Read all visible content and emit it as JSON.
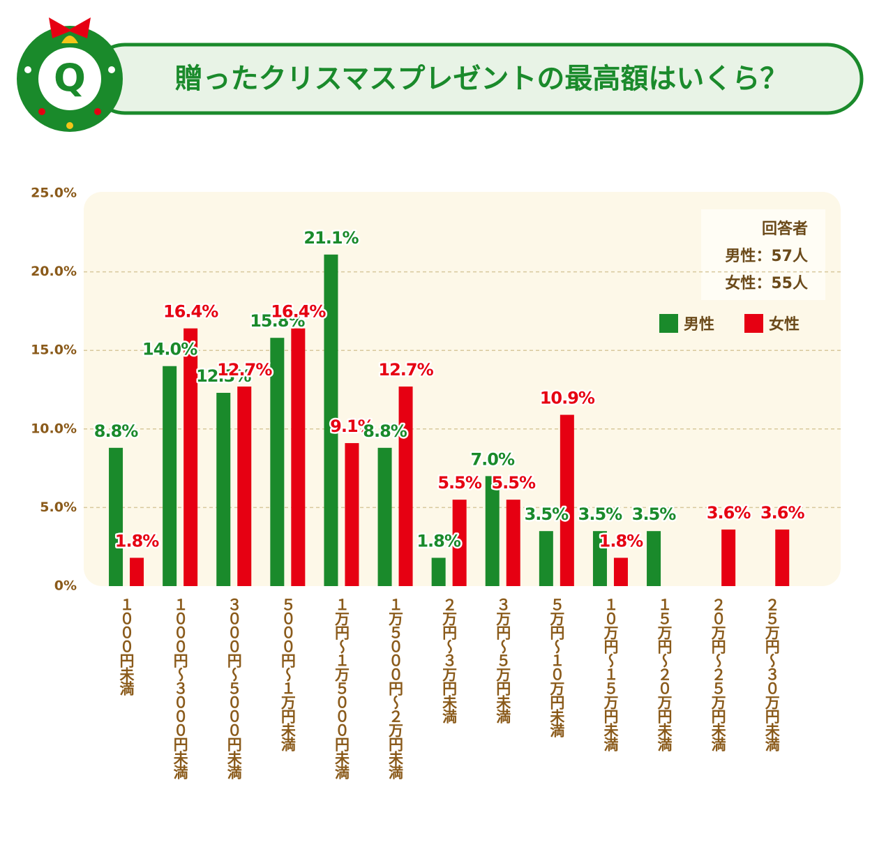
{
  "badge": "Q",
  "chart_data": {
    "type": "bar",
    "title": "贈ったクリスマスプレゼントの最高額はいくら？",
    "categories": [
      "１０００円未満",
      "１０００円～３０００円未満",
      "３０００円～５０００円未満",
      "５０００円～１万円未満",
      "１万円～１万５０００円未満",
      "１万５０００円～２万円未満",
      "２万円～３万円未満",
      "３万円～５万円未満",
      "５万円～１０万円未満",
      "１０万円～１５万円未満",
      "１５万円～２０万円未満",
      "２０万円～２５万円未満",
      "２５万円～３０万円未満"
    ],
    "series": [
      {
        "name": "男性",
        "color": "#1a8a2b",
        "values": [
          8.8,
          14.0,
          12.3,
          15.8,
          21.1,
          8.8,
          1.8,
          7.0,
          3.5,
          3.5,
          3.5,
          null,
          null
        ],
        "value_labels": [
          "8.8%",
          "14.0%",
          "12.3%",
          "15.8%",
          "21.1%",
          "8.8%",
          "1.8%",
          "7.0%",
          "3.5%",
          "3.5%",
          "3.5%",
          null,
          null
        ]
      },
      {
        "name": "女性",
        "color": "#e60012",
        "values": [
          1.8,
          16.4,
          12.7,
          16.4,
          9.1,
          12.7,
          5.5,
          5.5,
          10.9,
          1.8,
          null,
          3.6,
          3.6
        ],
        "value_labels": [
          "1.8%",
          "16.4%",
          "12.7%",
          "16.4%",
          "9.1%",
          "12.7%",
          "5.5%",
          "5.5%",
          "10.9%",
          "1.8%",
          null,
          "3.6%",
          "3.6%"
        ]
      }
    ],
    "ylim": [
      0,
      25
    ],
    "yticks": [
      {
        "value": 0,
        "label": "0%"
      },
      {
        "value": 5,
        "label": "5.0%"
      },
      {
        "value": 10,
        "label": "10.0%"
      },
      {
        "value": 15,
        "label": "15.0%"
      },
      {
        "value": 20,
        "label": "20.0%"
      },
      {
        "value": 25,
        "label": "25.0%"
      }
    ],
    "grid": true,
    "annotations": [
      "回答者",
      "男性：57人",
      "女性：55人"
    ]
  }
}
